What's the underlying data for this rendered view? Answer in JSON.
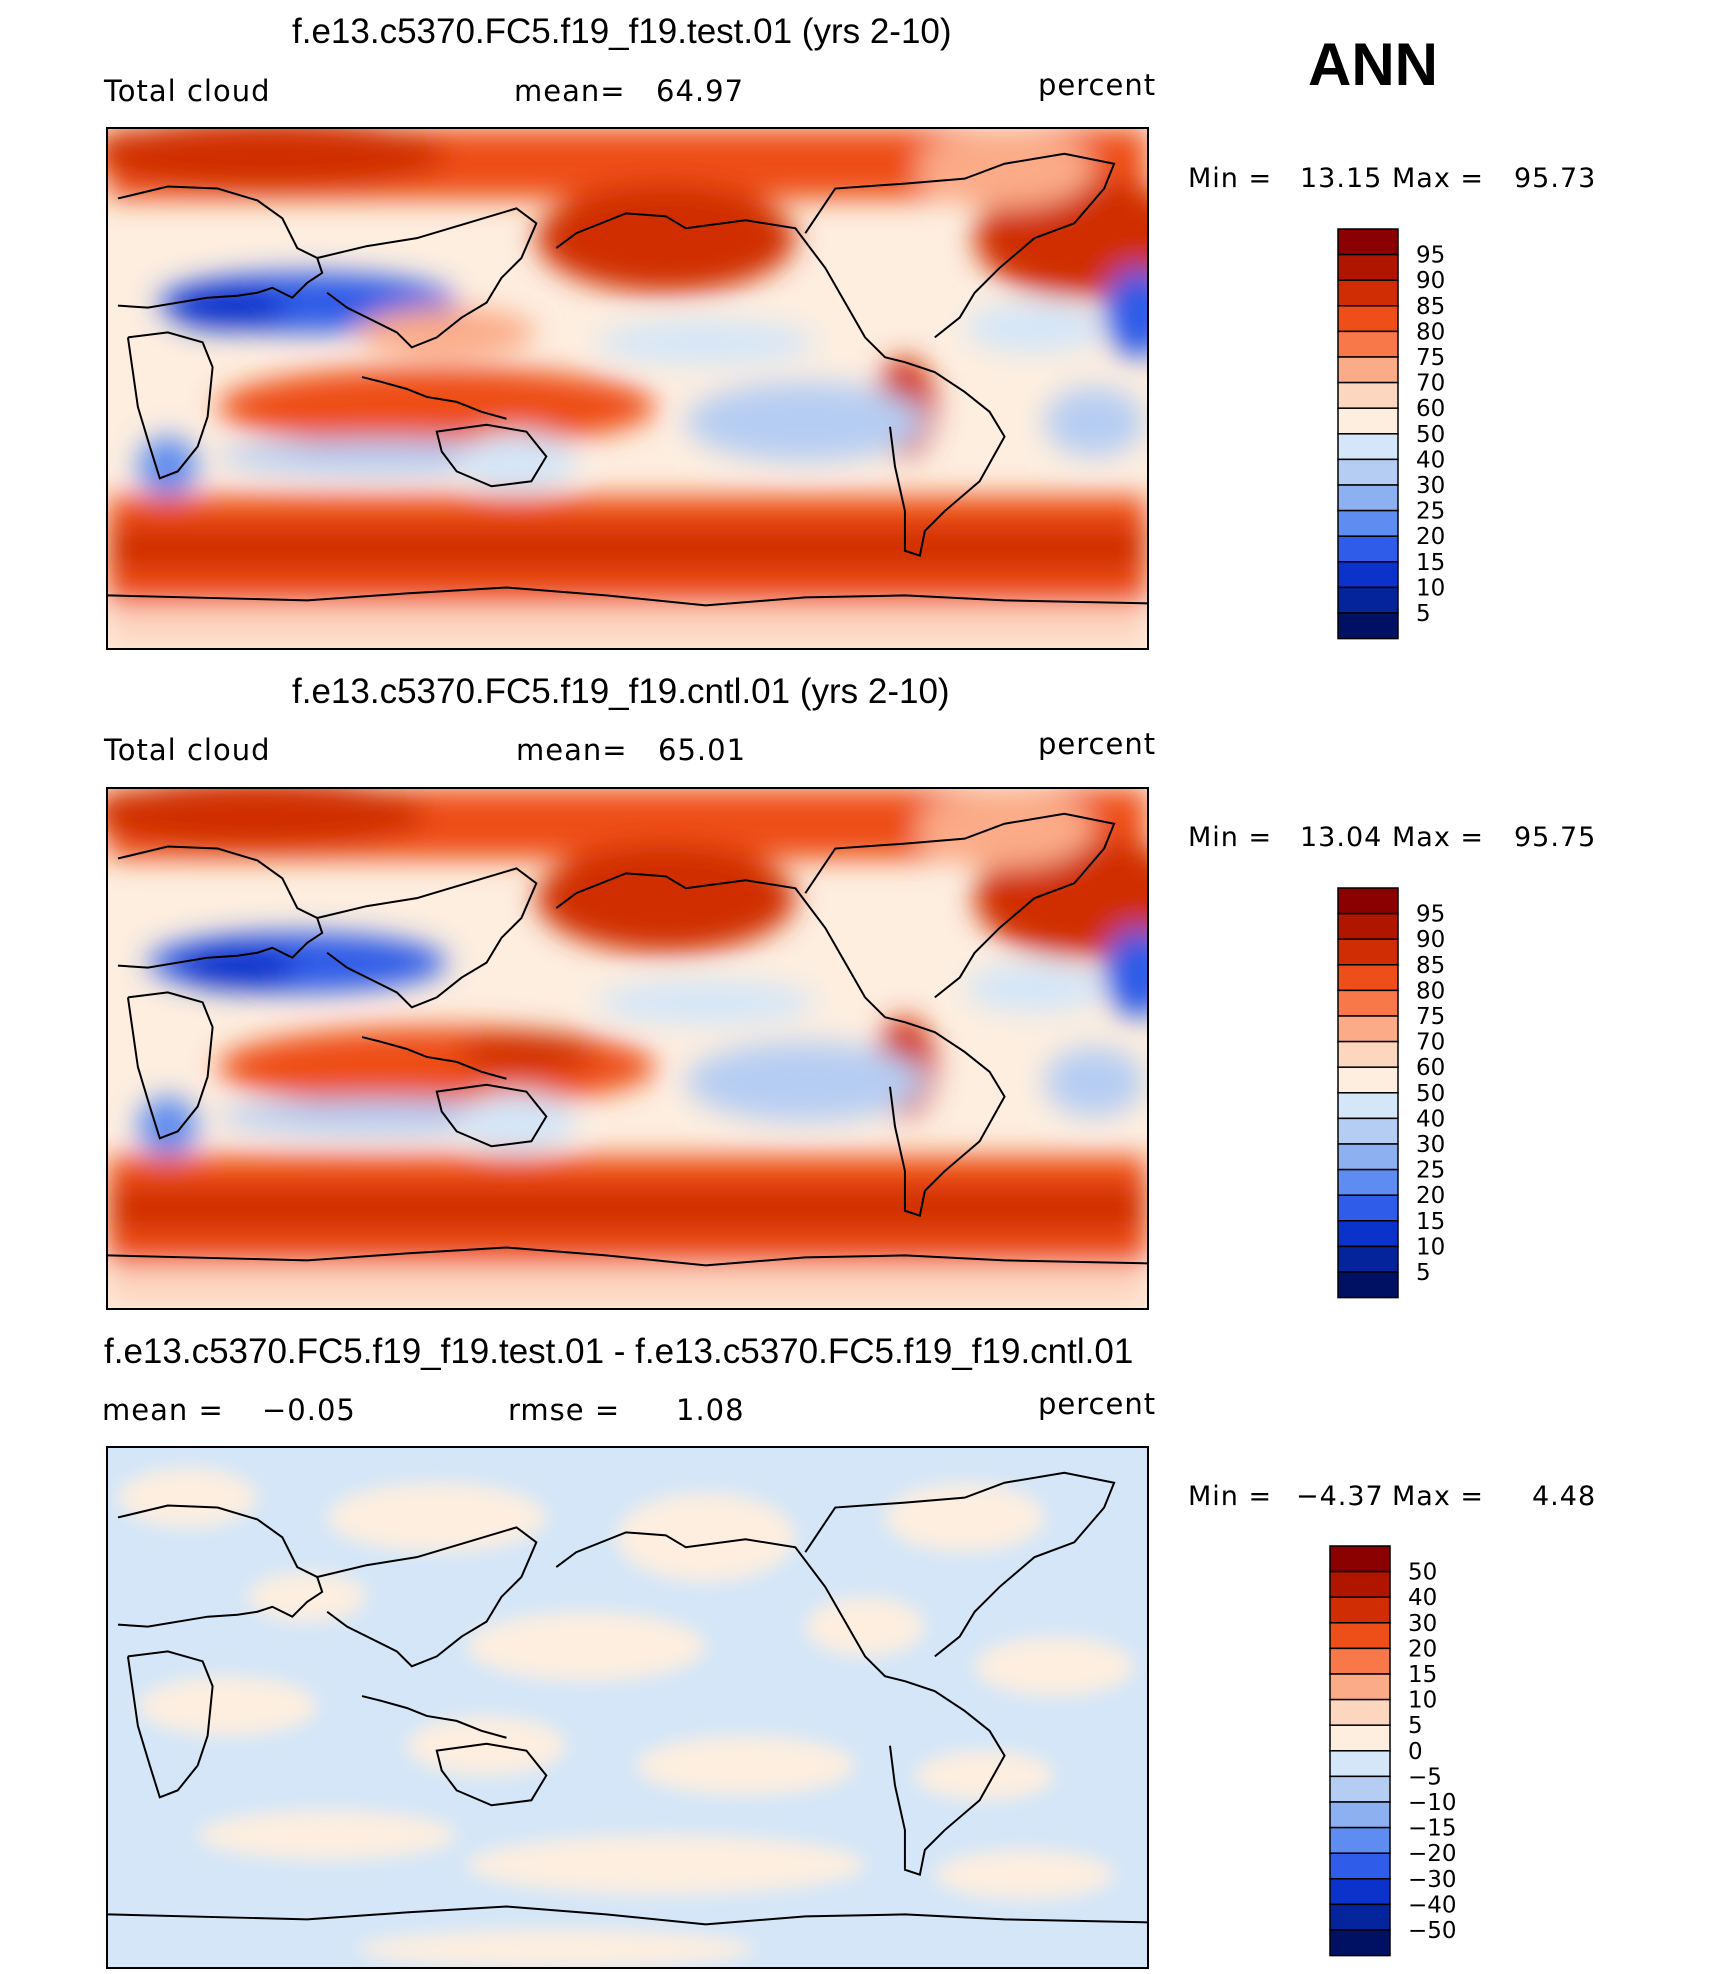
{
  "season_label": "ANN",
  "panels": [
    {
      "title": "f.e13.c5370.FC5.f19_f19.test.01 (yrs 2-10)",
      "left_label": "Total cloud",
      "center_label": "mean=",
      "center_value": "64.97",
      "units": "percent",
      "min_label": "Min  =",
      "min_value": "13.15",
      "max_label": "Max  =",
      "max_value": "95.73",
      "colorbar_levels": [
        "95",
        "90",
        "85",
        "80",
        "75",
        "70",
        "60",
        "50",
        "40",
        "30",
        "25",
        "20",
        "15",
        "10",
        "5"
      ],
      "colorbar_colors": [
        "#8b0000",
        "#b01500",
        "#d02d05",
        "#ee4e18",
        "#f8784a",
        "#fbab87",
        "#fdd6c0",
        "#fdeee0",
        "#d4e6f8",
        "#b6cdf3",
        "#8cb0f0",
        "#5f8cf0",
        "#2f5ce8",
        "#0c32cc",
        "#03249a",
        "#001063"
      ]
    },
    {
      "title": "f.e13.c5370.FC5.f19_f19.cntl.01 (yrs 2-10)",
      "left_label": "Total cloud",
      "center_label": "mean=",
      "center_value": "65.01",
      "units": "percent",
      "min_label": "Min  =",
      "min_value": "13.04",
      "max_label": "Max  =",
      "max_value": "95.75",
      "colorbar_levels": [
        "95",
        "90",
        "85",
        "80",
        "75",
        "70",
        "60",
        "50",
        "40",
        "30",
        "25",
        "20",
        "15",
        "10",
        "5"
      ],
      "colorbar_colors": [
        "#8b0000",
        "#b01500",
        "#d02d05",
        "#ee4e18",
        "#f8784a",
        "#fbab87",
        "#fdd6c0",
        "#fdeee0",
        "#d4e6f8",
        "#b6cdf3",
        "#8cb0f0",
        "#5f8cf0",
        "#2f5ce8",
        "#0c32cc",
        "#03249a",
        "#001063"
      ]
    },
    {
      "title": "f.e13.c5370.FC5.f19_f19.test.01 - f.e13.c5370.FC5.f19_f19.cntl.01",
      "left_label": "mean  =",
      "left_value": "−0.05",
      "center_label": "rmse  =",
      "center_value": "1.08",
      "units": "percent",
      "min_label": "Min  =",
      "min_value": "−4.37",
      "max_label": "Max  =",
      "max_value": "4.48",
      "colorbar_levels": [
        "50",
        "40",
        "30",
        "20",
        "15",
        "10",
        "5",
        "0",
        "−5",
        "−10",
        "−15",
        "−20",
        "−30",
        "−40",
        "−50"
      ],
      "colorbar_colors": [
        "#8b0000",
        "#b01500",
        "#d02d05",
        "#ee4e18",
        "#f8784a",
        "#fbab87",
        "#fdd6c0",
        "#fdeee0",
        "#d4e6f8",
        "#b6cdf3",
        "#8cb0f0",
        "#5f8cf0",
        "#2f5ce8",
        "#0c32cc",
        "#03249a",
        "#001063"
      ]
    }
  ]
}
